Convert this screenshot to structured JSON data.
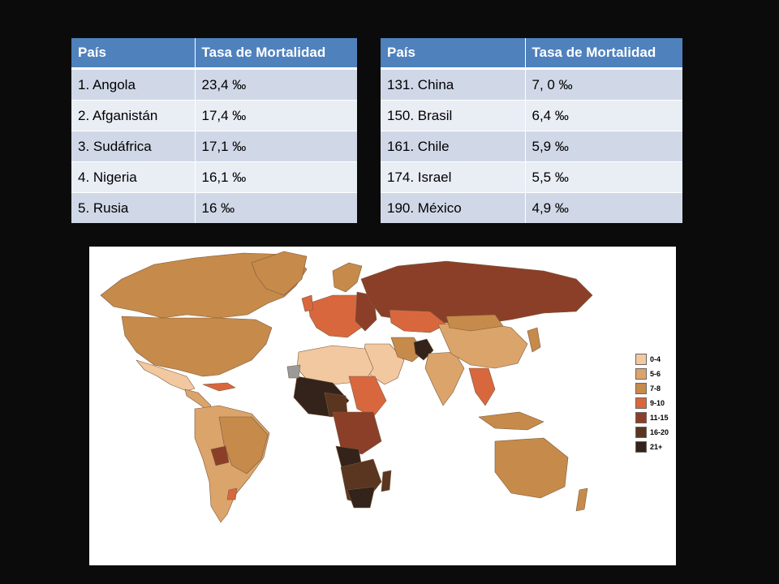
{
  "tables": {
    "left": {
      "headers": [
        "País",
        "Tasa de Mortalidad"
      ],
      "rows": [
        [
          "1. Angola",
          "23,4 ‰"
        ],
        [
          "2. Afganistán",
          "17,4 ‰"
        ],
        [
          "3. Sudáfrica",
          "17,1 ‰"
        ],
        [
          "4. Nigeria",
          "16,1 ‰"
        ],
        [
          "5. Rusia",
          "16 ‰"
        ]
      ]
    },
    "right": {
      "headers": [
        "País",
        "Tasa de Mortalidad"
      ],
      "rows": [
        [
          "131. China",
          "7, 0 ‰"
        ],
        [
          "150. Brasil",
          "6,4 ‰"
        ],
        [
          "161. Chile",
          "5,9 ‰"
        ],
        [
          "174. Israel",
          "5,5 ‰"
        ],
        [
          "190. México",
          "4,9 ‰"
        ]
      ]
    }
  },
  "map": {
    "legend": [
      {
        "label": "0-4",
        "color": "#f2c8a0"
      },
      {
        "label": "5-6",
        "color": "#dba46a"
      },
      {
        "label": "7-8",
        "color": "#c68a4a"
      },
      {
        "label": "9-10",
        "color": "#d9673e"
      },
      {
        "label": "11-15",
        "color": "#8b3f28"
      },
      {
        "label": "16-20",
        "color": "#5a3520"
      },
      {
        "label": "21+",
        "color": "#33231a"
      }
    ]
  }
}
